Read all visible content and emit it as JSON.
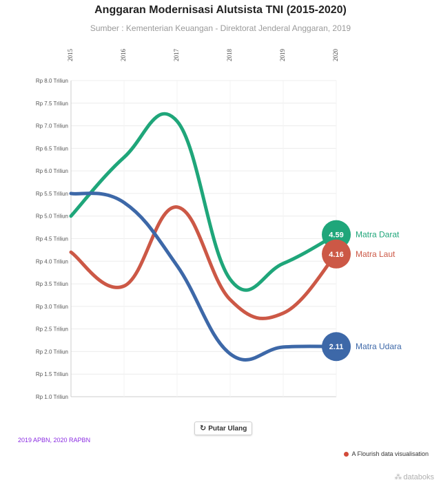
{
  "chart_data": {
    "type": "line",
    "title": "Anggaran Modernisasi Alutsista TNI (2015-2020)",
    "subtitle": "Sumber : Kementerian Keuangan - Direktorat Jenderal Anggaran, 2019",
    "categories": [
      "2015",
      "2016",
      "2017",
      "2018",
      "2019",
      "2020"
    ],
    "yticks": [
      "Rp 8.0 Triliun",
      "Rp 7.5 Triliun",
      "Rp 7.0 Triliun",
      "Rp 6.5 Triliun",
      "Rp 6.0 Triliun",
      "Rp 5.5 Triliun",
      "Rp 5.0 Triliun",
      "Rp 4.5 Triliun",
      "Rp 4.0 Triliun",
      "Rp 3.5 Triliun",
      "Rp 3.0 Triliun",
      "Rp 2.5 Triliun",
      "Rp 2.0 Triliun",
      "Rp 1.5 Triliun",
      "Rp 1.0 Triliun"
    ],
    "ylim": [
      1.0,
      8.0
    ],
    "series": [
      {
        "name": "Matra Darat",
        "color": "#1fa67a",
        "values": [
          5.0,
          6.3,
          7.1,
          3.6,
          3.95,
          4.59
        ],
        "end_label": "4.59"
      },
      {
        "name": "Matra Laut",
        "color": "#cc5846",
        "values": [
          4.2,
          3.45,
          5.2,
          3.15,
          2.85,
          4.16
        ],
        "end_label": "4.16"
      },
      {
        "name": "Matra Udara",
        "color": "#3d68a8",
        "values": [
          5.5,
          5.3,
          3.9,
          1.95,
          2.1,
          2.11
        ],
        "end_label": "2.11"
      }
    ]
  },
  "controls": {
    "replay_label": "Putar Ulang",
    "replay_icon": "↻"
  },
  "footer": {
    "note": "2019 APBN, 2020 RAPBN",
    "flourish": "A Flourish data visualisation",
    "brand": "databoks",
    "brand_icon": "⁂"
  }
}
